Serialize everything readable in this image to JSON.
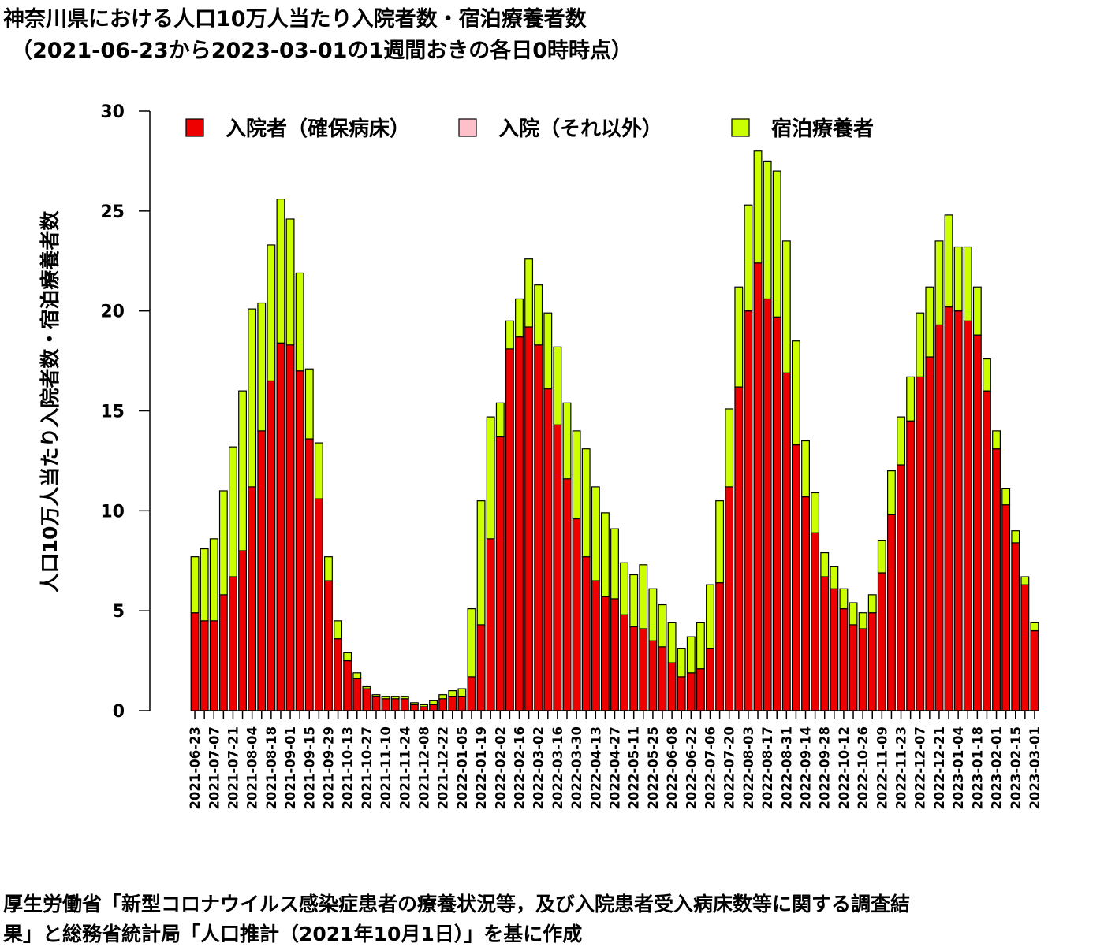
{
  "title_line1": "神奈川県における人口10万人当たり入院者数・宿泊療養者数",
  "title_line2": "（2021-06-23から2023-03-01の1週間おきの各日0時時点）",
  "footer_line1": "厚生労働省「新型コロナウイルス感染症患者の療養状況等，及び入院患者受入病床数等に関する調査結",
  "footer_line2": "果」と総務省統計局「人口推計（2021年10月1日）」を基に作成",
  "colors": {
    "hosp_secured": "#ee0000",
    "hosp_other": "#ffc0cb",
    "hotel": "#ccff00",
    "border": "#000000"
  },
  "chart_data": {
    "type": "bar",
    "stacked": true,
    "ylabel": "人口10万人当たり入院者数・宿泊療養者数",
    "ylim": [
      0,
      30
    ],
    "yticks": [
      0,
      5,
      10,
      15,
      20,
      25,
      30
    ],
    "legend_position": "top",
    "x_labels": [
      "2021-06-23",
      "2021-07-07",
      "2021-07-21",
      "2021-08-04",
      "2021-08-18",
      "2021-09-01",
      "2021-09-15",
      "2021-09-29",
      "2021-10-13",
      "2021-10-27",
      "2021-11-10",
      "2021-11-24",
      "2021-12-08",
      "2021-12-22",
      "2022-01-05",
      "2022-01-19",
      "2022-02-02",
      "2022-02-16",
      "2022-03-02",
      "2022-03-16",
      "2022-03-30",
      "2022-04-13",
      "2022-04-27",
      "2022-05-11",
      "2022-05-25",
      "2022-06-08",
      "2022-06-22",
      "2022-07-06",
      "2022-07-20",
      "2022-08-03",
      "2022-08-17",
      "2022-08-31",
      "2022-09-14",
      "2022-09-28",
      "2022-10-12",
      "2022-10-26",
      "2022-11-09",
      "2022-11-23",
      "2022-12-07",
      "2022-12-21",
      "2023-01-04",
      "2023-01-18",
      "2023-02-01",
      "2023-02-15",
      "2023-03-01"
    ],
    "categories": [
      "2021-06-23",
      "2021-06-30",
      "2021-07-07",
      "2021-07-14",
      "2021-07-21",
      "2021-07-28",
      "2021-08-04",
      "2021-08-11",
      "2021-08-18",
      "2021-08-25",
      "2021-09-01",
      "2021-09-08",
      "2021-09-15",
      "2021-09-22",
      "2021-09-29",
      "2021-10-06",
      "2021-10-13",
      "2021-10-20",
      "2021-10-27",
      "2021-11-03",
      "2021-11-10",
      "2021-11-17",
      "2021-11-24",
      "2021-12-01",
      "2021-12-08",
      "2021-12-15",
      "2021-12-22",
      "2021-12-29",
      "2022-01-05",
      "2022-01-12",
      "2022-01-19",
      "2022-01-26",
      "2022-02-02",
      "2022-02-09",
      "2022-02-16",
      "2022-02-23",
      "2022-03-02",
      "2022-03-09",
      "2022-03-16",
      "2022-03-23",
      "2022-03-30",
      "2022-04-06",
      "2022-04-13",
      "2022-04-20",
      "2022-04-27",
      "2022-05-04",
      "2022-05-11",
      "2022-05-18",
      "2022-05-25",
      "2022-06-01",
      "2022-06-08",
      "2022-06-15",
      "2022-06-22",
      "2022-06-29",
      "2022-07-06",
      "2022-07-13",
      "2022-07-20",
      "2022-07-27",
      "2022-08-03",
      "2022-08-10",
      "2022-08-17",
      "2022-08-24",
      "2022-08-31",
      "2022-09-07",
      "2022-09-14",
      "2022-09-21",
      "2022-09-28",
      "2022-10-05",
      "2022-10-12",
      "2022-10-19",
      "2022-10-26",
      "2022-11-02",
      "2022-11-09",
      "2022-11-16",
      "2022-11-23",
      "2022-11-30",
      "2022-12-07",
      "2022-12-14",
      "2022-12-21",
      "2022-12-28",
      "2023-01-04",
      "2023-01-11",
      "2023-01-18",
      "2023-01-25",
      "2023-02-01",
      "2023-02-08",
      "2023-02-15",
      "2023-02-22",
      "2023-03-01"
    ],
    "series": [
      {
        "name": "入院者（確保病床）",
        "color": "#ee0000",
        "values": [
          4.9,
          4.5,
          4.5,
          5.8,
          6.7,
          8.0,
          11.2,
          14.0,
          16.5,
          18.4,
          18.3,
          17.0,
          13.6,
          10.6,
          6.5,
          3.6,
          2.5,
          1.6,
          1.1,
          0.7,
          0.6,
          0.6,
          0.6,
          0.3,
          0.2,
          0.3,
          0.6,
          0.7,
          0.7,
          1.7,
          4.3,
          8.6,
          13.7,
          18.1,
          18.7,
          19.2,
          18.3,
          16.1,
          14.3,
          11.6,
          9.6,
          7.7,
          6.5,
          5.7,
          5.6,
          4.8,
          4.2,
          4.1,
          3.5,
          3.2,
          2.4,
          1.7,
          1.9,
          2.1,
          3.1,
          6.4,
          11.2,
          16.2,
          20.0,
          22.4,
          20.6,
          19.7,
          16.9,
          13.3,
          10.7,
          8.9,
          6.7,
          6.1,
          5.1,
          4.3,
          4.1,
          4.9,
          6.9,
          9.8,
          12.3,
          14.5,
          16.7,
          17.7,
          19.3,
          20.2,
          20.0,
          19.5,
          18.8,
          16.0,
          13.1,
          10.3,
          8.4,
          6.3,
          4.0
        ]
      },
      {
        "name": "入院（それ以外）",
        "color": "#ffc0cb",
        "values": [
          0,
          0,
          0,
          0,
          0,
          0,
          0,
          0,
          0,
          0,
          0,
          0,
          0,
          0,
          0,
          0,
          0,
          0,
          0,
          0,
          0,
          0,
          0,
          0,
          0,
          0,
          0,
          0,
          0,
          0,
          0,
          0,
          0,
          0,
          0,
          0,
          0,
          0,
          0,
          0,
          0,
          0,
          0,
          0,
          0,
          0,
          0,
          0,
          0,
          0,
          0,
          0,
          0,
          0,
          0,
          0,
          0,
          0,
          0,
          0,
          0,
          0,
          0,
          0,
          0,
          0,
          0,
          0,
          0,
          0,
          0,
          0,
          0,
          0,
          0,
          0,
          0,
          0,
          0,
          0,
          0,
          0,
          0,
          0,
          0,
          0,
          0,
          0,
          0
        ]
      },
      {
        "name": "宿泊療養者",
        "color": "#ccff00",
        "values": [
          2.8,
          3.6,
          4.1,
          5.2,
          6.5,
          8.0,
          8.9,
          6.4,
          6.8,
          7.2,
          6.3,
          4.9,
          3.5,
          2.8,
          1.2,
          0.9,
          0.4,
          0.3,
          0.1,
          0.1,
          0.1,
          0.1,
          0.1,
          0.1,
          0.1,
          0.2,
          0.2,
          0.3,
          0.4,
          3.4,
          6.2,
          6.1,
          1.7,
          1.4,
          1.9,
          3.4,
          3.0,
          3.8,
          3.9,
          3.8,
          4.4,
          5.4,
          4.7,
          4.2,
          3.5,
          2.6,
          2.6,
          3.2,
          2.6,
          2.1,
          2.0,
          1.4,
          1.8,
          2.3,
          3.2,
          4.1,
          3.9,
          5.0,
          5.3,
          5.6,
          6.9,
          7.3,
          6.6,
          5.2,
          2.8,
          2.0,
          1.2,
          1.1,
          1.0,
          1.1,
          0.8,
          0.9,
          1.6,
          2.2,
          2.4,
          2.2,
          3.2,
          3.5,
          4.2,
          4.6,
          3.2,
          3.7,
          2.4,
          1.6,
          0.9,
          0.8,
          0.6,
          0.4,
          0.4
        ]
      }
    ]
  }
}
